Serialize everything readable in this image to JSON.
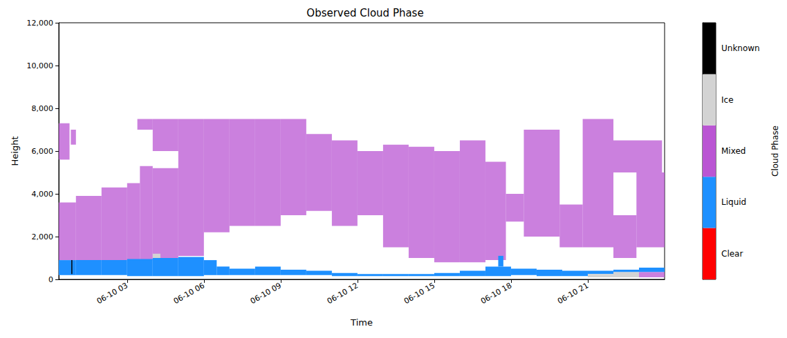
{
  "chart_data": {
    "type": "heatmap",
    "title": "Observed Cloud Phase",
    "x_label": "Time",
    "y_label": "Height",
    "xlim": [
      0.33,
      24.0
    ],
    "xticks": [
      {
        "value": 3,
        "label": "06-10 03"
      },
      {
        "value": 6,
        "label": "06-10 06"
      },
      {
        "value": 9,
        "label": "06-10 09"
      },
      {
        "value": 12,
        "label": "06-10 12"
      },
      {
        "value": 15,
        "label": "06-10 15"
      },
      {
        "value": 18,
        "label": "06-10 18"
      },
      {
        "value": 21,
        "label": "06-10 21"
      }
    ],
    "ylim": [
      0,
      12000
    ],
    "yticks": [
      0,
      2000,
      4000,
      6000,
      8000,
      10000,
      12000
    ],
    "grid": false,
    "colorbar": {
      "label": "Cloud Phase",
      "phases": [
        {
          "name": "Clear",
          "color": "#ff0000"
        },
        {
          "name": "Liquid",
          "color": "#1e90ff"
        },
        {
          "name": "Mixed",
          "color": "#ba55d3"
        },
        {
          "name": "Ice",
          "color": "#d3d3d3"
        },
        {
          "name": "Unknown",
          "color": "#000000"
        }
      ]
    },
    "cells": [
      [
        0.33,
        0.75,
        5600,
        7300,
        "Mixed"
      ],
      [
        0.8,
        1.0,
        6300,
        7000,
        "Mixed"
      ],
      [
        0.33,
        1,
        900,
        3600,
        "Mixed"
      ],
      [
        0.33,
        1,
        200,
        900,
        "Liquid"
      ],
      [
        0.82,
        0.86,
        250,
        900,
        "Unknown"
      ],
      [
        1,
        2,
        900,
        3900,
        "Mixed"
      ],
      [
        1,
        2,
        200,
        900,
        "Liquid"
      ],
      [
        2,
        3,
        900,
        4300,
        "Mixed"
      ],
      [
        2,
        3,
        200,
        900,
        "Liquid"
      ],
      [
        3,
        3.5,
        900,
        4500,
        "Mixed"
      ],
      [
        3.5,
        4,
        900,
        5300,
        "Mixed"
      ],
      [
        3.4,
        4,
        7000,
        7500,
        "Mixed"
      ],
      [
        3,
        4,
        150,
        950,
        "Liquid"
      ],
      [
        4,
        5,
        1000,
        5200,
        "Mixed"
      ],
      [
        4,
        5,
        6000,
        7500,
        "Mixed"
      ],
      [
        4,
        4.3,
        1000,
        1200,
        "Ice"
      ],
      [
        4,
        5,
        150,
        1000,
        "Liquid"
      ],
      [
        5,
        6,
        1100,
        7500,
        "Mixed"
      ],
      [
        5,
        6,
        150,
        1050,
        "Liquid"
      ],
      [
        6,
        7,
        2200,
        7500,
        "Mixed"
      ],
      [
        6,
        6.5,
        200,
        900,
        "Liquid"
      ],
      [
        6.5,
        7,
        200,
        600,
        "Liquid"
      ],
      [
        7,
        8,
        2500,
        7500,
        "Mixed"
      ],
      [
        7,
        8,
        200,
        500,
        "Liquid"
      ],
      [
        8,
        9,
        2500,
        7500,
        "Mixed"
      ],
      [
        8,
        9,
        200,
        600,
        "Liquid"
      ],
      [
        9,
        10,
        3000,
        7500,
        "Mixed"
      ],
      [
        9,
        10,
        200,
        450,
        "Liquid"
      ],
      [
        10,
        11,
        3200,
        6800,
        "Mixed"
      ],
      [
        10,
        11,
        200,
        400,
        "Liquid"
      ],
      [
        11,
        12,
        2500,
        6500,
        "Mixed"
      ],
      [
        11,
        12,
        150,
        300,
        "Liquid"
      ],
      [
        12,
        13,
        3000,
        6000,
        "Mixed"
      ],
      [
        12,
        13,
        150,
        250,
        "Liquid"
      ],
      [
        13,
        14,
        1500,
        6300,
        "Mixed"
      ],
      [
        13,
        14,
        150,
        250,
        "Liquid"
      ],
      [
        14,
        15,
        1000,
        6200,
        "Mixed"
      ],
      [
        14,
        15,
        150,
        250,
        "Liquid"
      ],
      [
        15,
        16,
        800,
        6000,
        "Mixed"
      ],
      [
        15,
        16,
        150,
        300,
        "Liquid"
      ],
      [
        16,
        17,
        800,
        6500,
        "Mixed"
      ],
      [
        16,
        17,
        150,
        400,
        "Liquid"
      ],
      [
        17,
        17.8,
        900,
        5500,
        "Mixed"
      ],
      [
        17,
        18,
        150,
        600,
        "Liquid"
      ],
      [
        17.5,
        17.7,
        600,
        1100,
        "Liquid"
      ],
      [
        17.8,
        18.5,
        2700,
        4000,
        "Mixed"
      ],
      [
        18,
        19,
        200,
        500,
        "Liquid"
      ],
      [
        18.5,
        19.9,
        2000,
        7000,
        "Mixed"
      ],
      [
        19,
        20,
        150,
        450,
        "Liquid"
      ],
      [
        19.9,
        20.8,
        1500,
        3500,
        "Mixed"
      ],
      [
        20,
        21,
        150,
        400,
        "Liquid"
      ],
      [
        20.8,
        22,
        1500,
        7500,
        "Mixed"
      ],
      [
        21,
        22,
        250,
        400,
        "Liquid"
      ],
      [
        21,
        22,
        100,
        250,
        "Ice"
      ],
      [
        22,
        22.9,
        1000,
        3000,
        "Mixed"
      ],
      [
        22,
        23.9,
        5000,
        6500,
        "Mixed"
      ],
      [
        22,
        23,
        100,
        350,
        "Ice"
      ],
      [
        22,
        23,
        350,
        450,
        "Liquid"
      ],
      [
        22.9,
        24,
        1500,
        5000,
        "Mixed"
      ],
      [
        23,
        24,
        100,
        350,
        "Mixed"
      ],
      [
        23,
        24,
        350,
        550,
        "Liquid"
      ]
    ]
  }
}
